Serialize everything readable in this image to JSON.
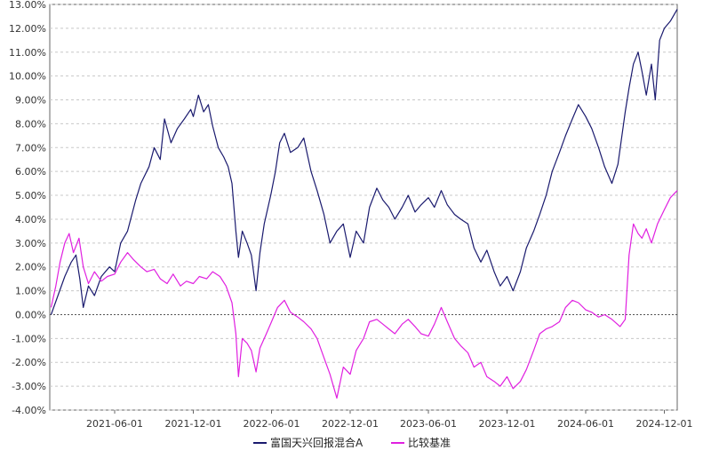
{
  "chart_data": {
    "type": "line",
    "title": "",
    "xlabel": "",
    "ylabel": "",
    "ylim": [
      -4.0,
      13.0
    ],
    "y_ticks": [
      "13.00%",
      "12.00%",
      "11.00%",
      "10.00%",
      "9.00%",
      "8.00%",
      "7.00%",
      "6.00%",
      "5.00%",
      "4.00%",
      "3.00%",
      "2.00%",
      "1.00%",
      "0.00%",
      "-1.00%",
      "-2.00%",
      "-3.00%",
      "-4.00%"
    ],
    "y_tick_values": [
      13,
      12,
      11,
      10,
      9,
      8,
      7,
      6,
      5,
      4,
      3,
      2,
      1,
      0,
      -1,
      -2,
      -3,
      -4
    ],
    "x_ticks": [
      "2021-06-01",
      "2021-12-01",
      "2022-06-01",
      "2022-12-01",
      "2023-06-01",
      "2023-12-01",
      "2024-06-01",
      "2024-12-01"
    ],
    "x_start": "2021-01-01",
    "x_end": "2024-12-31",
    "grid": true,
    "legend_position": "bottom-center",
    "series": [
      {
        "name": "富国天兴回报混合A",
        "color": "#1a1a6e",
        "points": [
          [
            "2021-01-04",
            0.0
          ],
          [
            "2021-01-20",
            0.8
          ],
          [
            "2021-02-05",
            1.6
          ],
          [
            "2021-02-20",
            2.2
          ],
          [
            "2021-03-03",
            2.5
          ],
          [
            "2021-03-12",
            1.5
          ],
          [
            "2021-03-20",
            0.3
          ],
          [
            "2021-04-01",
            1.2
          ],
          [
            "2021-04-15",
            0.8
          ],
          [
            "2021-05-01",
            1.6
          ],
          [
            "2021-05-20",
            2.0
          ],
          [
            "2021-06-01",
            1.8
          ],
          [
            "2021-06-15",
            3.0
          ],
          [
            "2021-07-01",
            3.5
          ],
          [
            "2021-07-20",
            4.8
          ],
          [
            "2021-08-01",
            5.5
          ],
          [
            "2021-08-20",
            6.2
          ],
          [
            "2021-09-01",
            7.0
          ],
          [
            "2021-09-15",
            6.5
          ],
          [
            "2021-09-25",
            8.2
          ],
          [
            "2021-10-10",
            7.2
          ],
          [
            "2021-10-25",
            7.8
          ],
          [
            "2021-11-10",
            8.2
          ],
          [
            "2021-11-25",
            8.6
          ],
          [
            "2021-12-01",
            8.3
          ],
          [
            "2021-12-13",
            9.2
          ],
          [
            "2021-12-25",
            8.5
          ],
          [
            "2022-01-05",
            8.8
          ],
          [
            "2022-01-15",
            7.9
          ],
          [
            "2022-01-28",
            7.0
          ],
          [
            "2022-02-10",
            6.6
          ],
          [
            "2022-02-20",
            6.2
          ],
          [
            "2022-03-01",
            5.5
          ],
          [
            "2022-03-10",
            3.5
          ],
          [
            "2022-03-16",
            2.4
          ],
          [
            "2022-03-25",
            3.5
          ],
          [
            "2022-04-05",
            3.0
          ],
          [
            "2022-04-15",
            2.5
          ],
          [
            "2022-04-26",
            1.0
          ],
          [
            "2022-05-05",
            2.6
          ],
          [
            "2022-05-15",
            3.8
          ],
          [
            "2022-05-30",
            5.0
          ],
          [
            "2022-06-10",
            6.0
          ],
          [
            "2022-06-20",
            7.2
          ],
          [
            "2022-07-01",
            7.6
          ],
          [
            "2022-07-15",
            6.8
          ],
          [
            "2022-08-01",
            7.0
          ],
          [
            "2022-08-15",
            7.4
          ],
          [
            "2022-09-01",
            6.0
          ],
          [
            "2022-09-15",
            5.2
          ],
          [
            "2022-10-01",
            4.2
          ],
          [
            "2022-10-15",
            3.0
          ],
          [
            "2022-10-31",
            3.5
          ],
          [
            "2022-11-15",
            3.8
          ],
          [
            "2022-12-01",
            2.4
          ],
          [
            "2022-12-15",
            3.5
          ],
          [
            "2023-01-01",
            3.0
          ],
          [
            "2023-01-15",
            4.5
          ],
          [
            "2023-02-01",
            5.3
          ],
          [
            "2023-02-15",
            4.8
          ],
          [
            "2023-03-01",
            4.5
          ],
          [
            "2023-03-15",
            4.0
          ],
          [
            "2023-04-01",
            4.5
          ],
          [
            "2023-04-15",
            5.0
          ],
          [
            "2023-05-01",
            4.3
          ],
          [
            "2023-05-15",
            4.6
          ],
          [
            "2023-06-01",
            4.9
          ],
          [
            "2023-06-15",
            4.5
          ],
          [
            "2023-07-01",
            5.2
          ],
          [
            "2023-07-15",
            4.6
          ],
          [
            "2023-08-01",
            4.2
          ],
          [
            "2023-08-15",
            4.0
          ],
          [
            "2023-09-01",
            3.8
          ],
          [
            "2023-09-15",
            2.8
          ],
          [
            "2023-10-01",
            2.2
          ],
          [
            "2023-10-15",
            2.7
          ],
          [
            "2023-11-01",
            1.8
          ],
          [
            "2023-11-15",
            1.2
          ],
          [
            "2023-12-01",
            1.6
          ],
          [
            "2023-12-15",
            1.0
          ],
          [
            "2024-01-01",
            1.8
          ],
          [
            "2024-01-15",
            2.8
          ],
          [
            "2024-02-01",
            3.5
          ],
          [
            "2024-02-15",
            4.2
          ],
          [
            "2024-03-01",
            5.0
          ],
          [
            "2024-03-15",
            6.0
          ],
          [
            "2024-04-01",
            6.8
          ],
          [
            "2024-04-15",
            7.5
          ],
          [
            "2024-05-01",
            8.2
          ],
          [
            "2024-05-15",
            8.8
          ],
          [
            "2024-06-01",
            8.3
          ],
          [
            "2024-06-15",
            7.8
          ],
          [
            "2024-07-01",
            7.0
          ],
          [
            "2024-07-15",
            6.2
          ],
          [
            "2024-08-01",
            5.5
          ],
          [
            "2024-08-15",
            6.3
          ],
          [
            "2024-09-01",
            8.5
          ],
          [
            "2024-09-10",
            9.5
          ],
          [
            "2024-09-20",
            10.5
          ],
          [
            "2024-10-01",
            11.0
          ],
          [
            "2024-10-10",
            10.2
          ],
          [
            "2024-10-20",
            9.2
          ],
          [
            "2024-11-01",
            10.5
          ],
          [
            "2024-11-10",
            9.0
          ],
          [
            "2024-11-20",
            11.5
          ],
          [
            "2024-12-01",
            12.0
          ],
          [
            "2024-12-15",
            12.3
          ],
          [
            "2024-12-31",
            12.8
          ]
        ]
      },
      {
        "name": "比较基准",
        "color": "#e020e0",
        "points": [
          [
            "2021-01-04",
            0.3
          ],
          [
            "2021-01-15",
            1.2
          ],
          [
            "2021-01-25",
            2.2
          ],
          [
            "2021-02-05",
            3.0
          ],
          [
            "2021-02-15",
            3.4
          ],
          [
            "2021-02-25",
            2.6
          ],
          [
            "2021-03-10",
            3.2
          ],
          [
            "2021-03-20",
            2.0
          ],
          [
            "2021-04-01",
            1.3
          ],
          [
            "2021-04-15",
            1.8
          ],
          [
            "2021-05-01",
            1.4
          ],
          [
            "2021-05-15",
            1.6
          ],
          [
            "2021-06-01",
            1.7
          ],
          [
            "2021-06-15",
            2.2
          ],
          [
            "2021-07-01",
            2.6
          ],
          [
            "2021-07-15",
            2.3
          ],
          [
            "2021-08-01",
            2.0
          ],
          [
            "2021-08-15",
            1.8
          ],
          [
            "2021-09-01",
            1.9
          ],
          [
            "2021-09-15",
            1.5
          ],
          [
            "2021-10-01",
            1.3
          ],
          [
            "2021-10-15",
            1.7
          ],
          [
            "2021-11-01",
            1.2
          ],
          [
            "2021-11-15",
            1.4
          ],
          [
            "2021-12-01",
            1.3
          ],
          [
            "2021-12-15",
            1.6
          ],
          [
            "2022-01-01",
            1.5
          ],
          [
            "2022-01-15",
            1.8
          ],
          [
            "2022-02-01",
            1.6
          ],
          [
            "2022-02-15",
            1.2
          ],
          [
            "2022-03-01",
            0.5
          ],
          [
            "2022-03-10",
            -0.8
          ],
          [
            "2022-03-16",
            -2.6
          ],
          [
            "2022-03-25",
            -1.0
          ],
          [
            "2022-04-05",
            -1.2
          ],
          [
            "2022-04-15",
            -1.5
          ],
          [
            "2022-04-26",
            -2.4
          ],
          [
            "2022-05-05",
            -1.4
          ],
          [
            "2022-05-20",
            -0.8
          ],
          [
            "2022-06-01",
            -0.3
          ],
          [
            "2022-06-15",
            0.3
          ],
          [
            "2022-07-01",
            0.6
          ],
          [
            "2022-07-15",
            0.1
          ],
          [
            "2022-08-01",
            -0.1
          ],
          [
            "2022-08-15",
            -0.3
          ],
          [
            "2022-09-01",
            -0.6
          ],
          [
            "2022-09-15",
            -1.0
          ],
          [
            "2022-10-01",
            -1.8
          ],
          [
            "2022-10-15",
            -2.5
          ],
          [
            "2022-10-31",
            -3.5
          ],
          [
            "2022-11-15",
            -2.2
          ],
          [
            "2022-12-01",
            -2.5
          ],
          [
            "2022-12-15",
            -1.5
          ],
          [
            "2023-01-01",
            -1.0
          ],
          [
            "2023-01-15",
            -0.3
          ],
          [
            "2023-02-01",
            -0.2
          ],
          [
            "2023-02-15",
            -0.4
          ],
          [
            "2023-03-01",
            -0.6
          ],
          [
            "2023-03-15",
            -0.8
          ],
          [
            "2023-04-01",
            -0.4
          ],
          [
            "2023-04-15",
            -0.2
          ],
          [
            "2023-05-01",
            -0.5
          ],
          [
            "2023-05-15",
            -0.8
          ],
          [
            "2023-06-01",
            -0.9
          ],
          [
            "2023-06-15",
            -0.4
          ],
          [
            "2023-07-01",
            0.3
          ],
          [
            "2023-07-15",
            -0.3
          ],
          [
            "2023-08-01",
            -1.0
          ],
          [
            "2023-08-15",
            -1.3
          ],
          [
            "2023-09-01",
            -1.6
          ],
          [
            "2023-09-15",
            -2.2
          ],
          [
            "2023-10-01",
            -2.0
          ],
          [
            "2023-10-15",
            -2.6
          ],
          [
            "2023-11-01",
            -2.8
          ],
          [
            "2023-11-15",
            -3.0
          ],
          [
            "2023-12-01",
            -2.6
          ],
          [
            "2023-12-15",
            -3.1
          ],
          [
            "2024-01-01",
            -2.8
          ],
          [
            "2024-01-15",
            -2.3
          ],
          [
            "2024-02-01",
            -1.5
          ],
          [
            "2024-02-15",
            -0.8
          ],
          [
            "2024-03-01",
            -0.6
          ],
          [
            "2024-03-15",
            -0.5
          ],
          [
            "2024-04-01",
            -0.3
          ],
          [
            "2024-04-15",
            0.3
          ],
          [
            "2024-05-01",
            0.6
          ],
          [
            "2024-05-15",
            0.5
          ],
          [
            "2024-06-01",
            0.2
          ],
          [
            "2024-06-15",
            0.1
          ],
          [
            "2024-07-01",
            -0.1
          ],
          [
            "2024-07-15",
            0.0
          ],
          [
            "2024-08-01",
            -0.2
          ],
          [
            "2024-08-20",
            -0.5
          ],
          [
            "2024-09-01",
            -0.2
          ],
          [
            "2024-09-10",
            2.5
          ],
          [
            "2024-09-20",
            3.8
          ],
          [
            "2024-10-01",
            3.4
          ],
          [
            "2024-10-10",
            3.2
          ],
          [
            "2024-10-20",
            3.6
          ],
          [
            "2024-11-01",
            3.0
          ],
          [
            "2024-11-15",
            3.8
          ],
          [
            "2024-12-01",
            4.4
          ],
          [
            "2024-12-15",
            4.9
          ],
          [
            "2024-12-31",
            5.2
          ]
        ]
      }
    ]
  }
}
